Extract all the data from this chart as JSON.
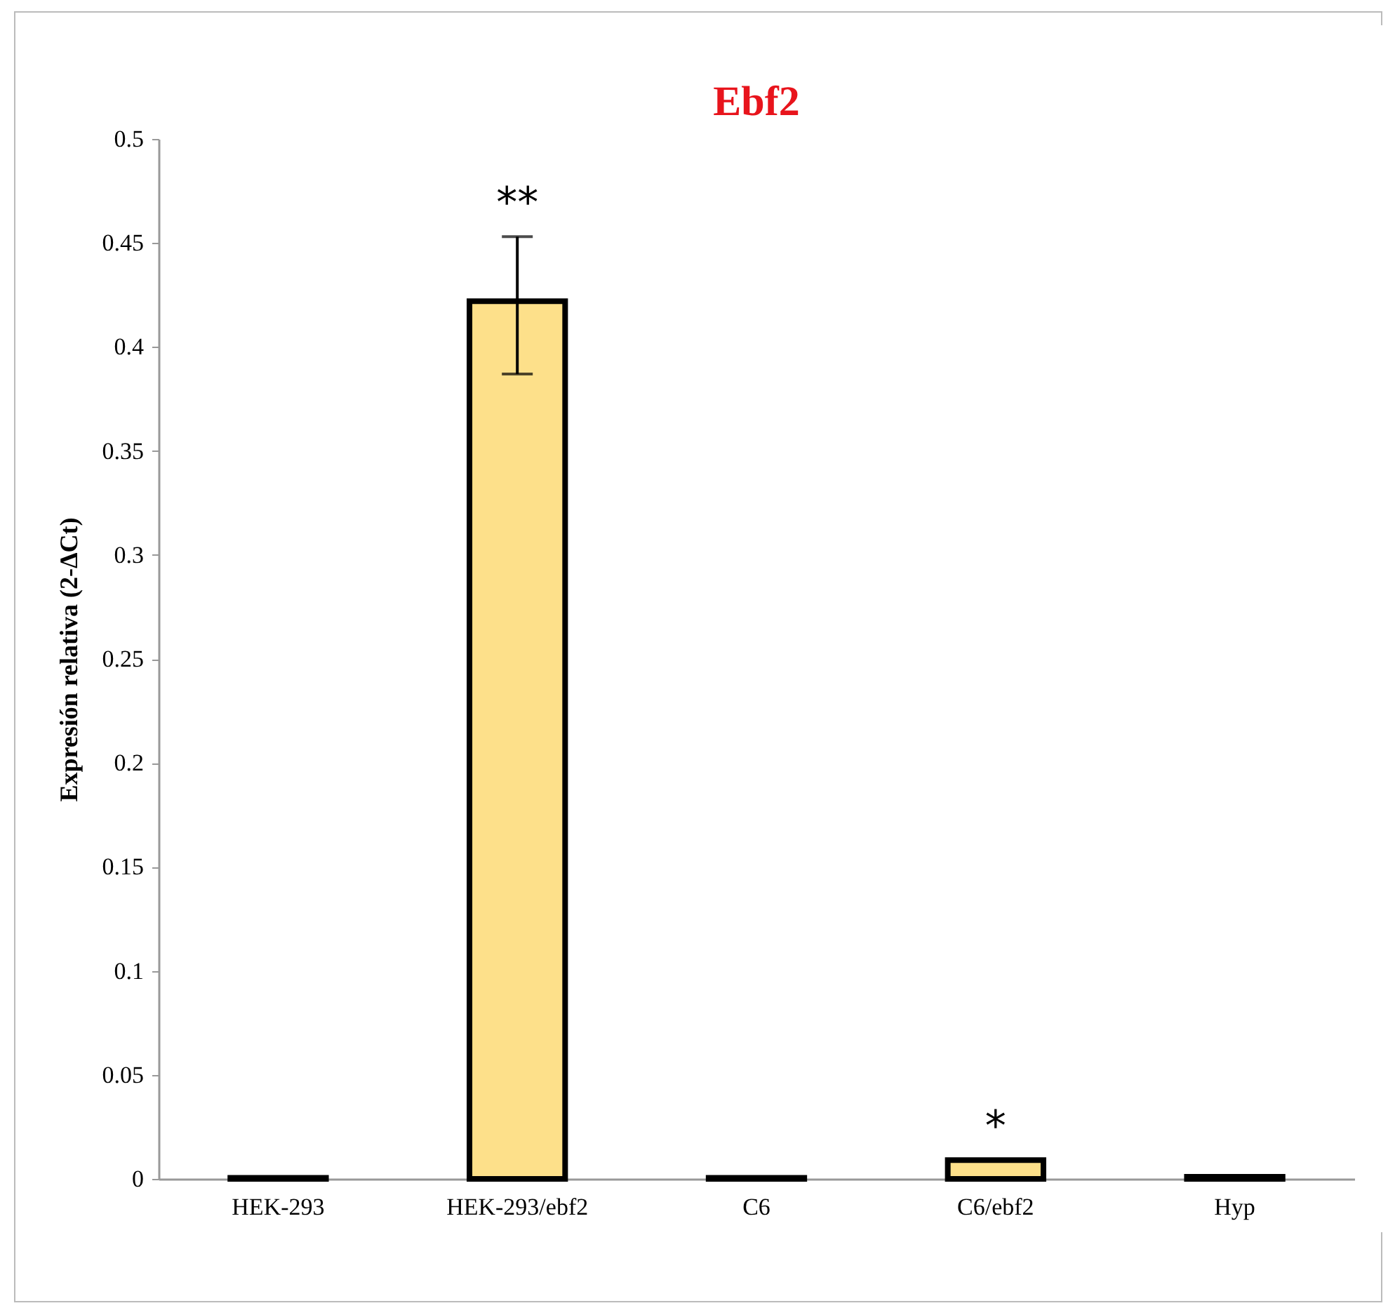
{
  "chart_data": {
    "type": "bar",
    "title": "Ebf2",
    "ylabel": "Expresión relativa (2-ΔCt)",
    "categories": [
      "HEK-293",
      "HEK-293/ebf2",
      "C6",
      "C6/ebf2",
      "Hyp"
    ],
    "series": [
      {
        "color": "#fde08a",
        "values": [
          0.0005,
          0.422,
          0.0005,
          0.009,
          0.001
        ],
        "errors": [
          null,
          [
            0.387,
            0.453
          ],
          null,
          null,
          null
        ]
      }
    ],
    "ylim": [
      0,
      0.5
    ],
    "yticks": [
      0,
      0.05,
      0.1,
      0.15,
      0.2,
      0.25,
      0.3,
      0.35,
      0.4,
      0.45,
      0.5
    ],
    "grid": false,
    "annotations": [
      {
        "text": "**",
        "x": "HEK-293/ebf2",
        "y": 0.453
      },
      {
        "text": "*",
        "x": "C6/ebf2",
        "y": 0.009
      }
    ]
  }
}
